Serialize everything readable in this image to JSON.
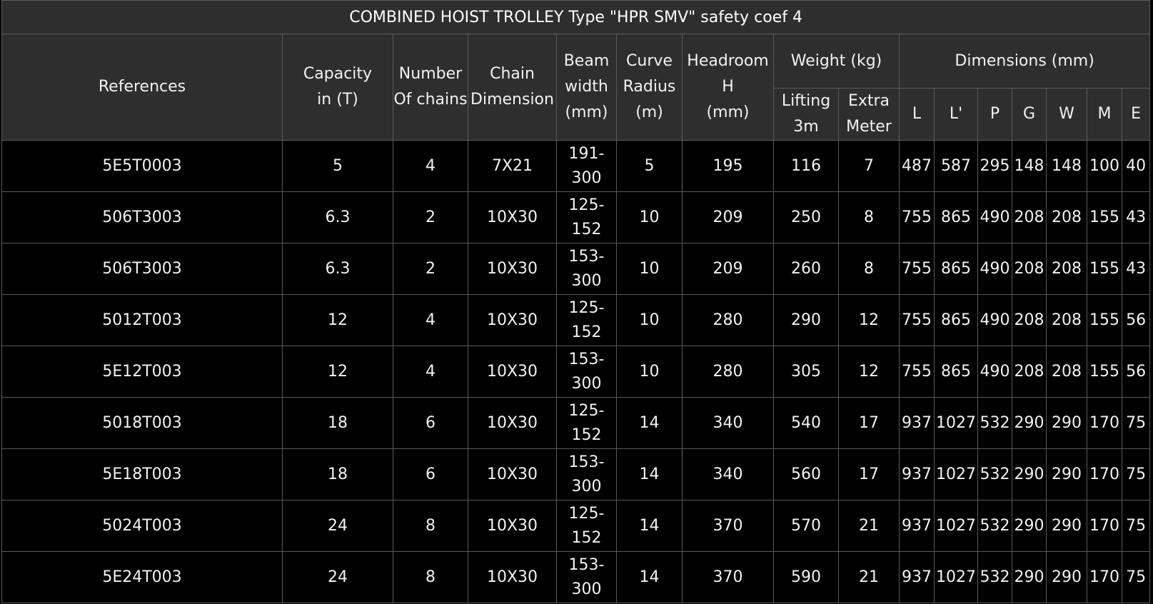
{
  "title": "COMBINED HOIST TROLLEY Type \"HPR SMV\" safety coef 4",
  "headers": {
    "references": "References",
    "capacity": [
      "Capacity",
      "in (T)"
    ],
    "chains": [
      "Number",
      "Of chains"
    ],
    "chain_dim": [
      "Chain",
      "Dimension"
    ],
    "beam": [
      "Beam",
      "width",
      "(mm)"
    ],
    "curve": [
      "Curve",
      "Radius",
      "(m)"
    ],
    "headroom": [
      "Headroom",
      "H",
      "(mm)"
    ],
    "weight_group": "Weight (kg)",
    "weight_lift": [
      "Lifting",
      "3m"
    ],
    "weight_extra": [
      "Extra",
      "Meter"
    ],
    "dims_group": "Dimensions (mm)",
    "dims": [
      "L",
      "L'",
      "P",
      "G",
      "W",
      "M",
      "E"
    ]
  },
  "rows": [
    {
      "ref": "5E5T0003",
      "cap": "5",
      "chains": "4",
      "dim": "7X21",
      "beam": [
        "191-",
        "300"
      ],
      "curve": "5",
      "head": "195",
      "lift": "116",
      "extra": "7",
      "L": "487",
      "L2": "587",
      "P": "295",
      "G": "148",
      "W": "148",
      "M": "100",
      "E": "40"
    },
    {
      "ref": "506T3003",
      "cap": "6.3",
      "chains": "2",
      "dim": "10X30",
      "beam": [
        "125-",
        "152"
      ],
      "curve": "10",
      "head": "209",
      "lift": "250",
      "extra": "8",
      "L": "755",
      "L2": "865",
      "P": "490",
      "G": "208",
      "W": "208",
      "M": "155",
      "E": "43"
    },
    {
      "ref": "506T3003",
      "cap": "6.3",
      "chains": "2",
      "dim": "10X30",
      "beam": [
        "153-",
        "300"
      ],
      "curve": "10",
      "head": "209",
      "lift": "260",
      "extra": "8",
      "L": "755",
      "L2": "865",
      "P": "490",
      "G": "208",
      "W": "208",
      "M": "155",
      "E": "43"
    },
    {
      "ref": "5012T003",
      "cap": "12",
      "chains": "4",
      "dim": "10X30",
      "beam": [
        "125-",
        "152"
      ],
      "curve": "10",
      "head": "280",
      "lift": "290",
      "extra": "12",
      "L": "755",
      "L2": "865",
      "P": "490",
      "G": "208",
      "W": "208",
      "M": "155",
      "E": "56"
    },
    {
      "ref": "5E12T003",
      "cap": "12",
      "chains": "4",
      "dim": "10X30",
      "beam": [
        "153-",
        "300"
      ],
      "curve": "10",
      "head": "280",
      "lift": "305",
      "extra": "12",
      "L": "755",
      "L2": "865",
      "P": "490",
      "G": "208",
      "W": "208",
      "M": "155",
      "E": "56"
    },
    {
      "ref": "5018T003",
      "cap": "18",
      "chains": "6",
      "dim": "10X30",
      "beam": [
        "125-",
        "152"
      ],
      "curve": "14",
      "head": "340",
      "lift": "540",
      "extra": "17",
      "L": "937",
      "L2": "1027",
      "P": "532",
      "G": "290",
      "W": "290",
      "M": "170",
      "E": "75"
    },
    {
      "ref": "5E18T003",
      "cap": "18",
      "chains": "6",
      "dim": "10X30",
      "beam": [
        "153-",
        "300"
      ],
      "curve": "14",
      "head": "340",
      "lift": "560",
      "extra": "17",
      "L": "937",
      "L2": "1027",
      "P": "532",
      "G": "290",
      "W": "290",
      "M": "170",
      "E": "75"
    },
    {
      "ref": "5024T003",
      "cap": "24",
      "chains": "8",
      "dim": "10X30",
      "beam": [
        "125-",
        "152"
      ],
      "curve": "14",
      "head": "370",
      "lift": "570",
      "extra": "21",
      "L": "937",
      "L2": "1027",
      "P": "532",
      "G": "290",
      "W": "290",
      "M": "170",
      "E": "75"
    },
    {
      "ref": "5E24T003",
      "cap": "24",
      "chains": "8",
      "dim": "10X30",
      "beam": [
        "153-",
        "300"
      ],
      "curve": "14",
      "head": "370",
      "lift": "590",
      "extra": "21",
      "L": "937",
      "L2": "1027",
      "P": "532",
      "G": "290",
      "W": "290",
      "M": "170",
      "E": "75"
    }
  ]
}
